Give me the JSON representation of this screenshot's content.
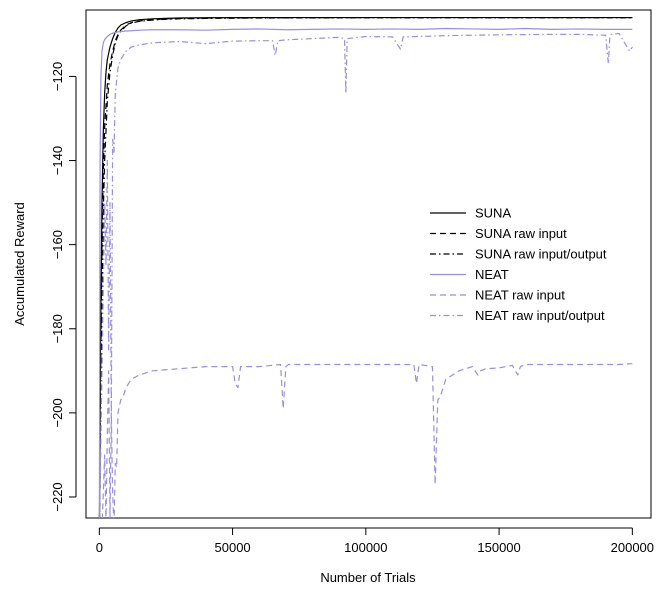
{
  "chart_data": {
    "type": "line",
    "title": "",
    "xlabel": "Number of Trials",
    "ylabel": "Accumulated Reward",
    "xlim": [
      -5000,
      207000
    ],
    "ylim": [
      -225,
      -104.2
    ],
    "x_ticks": [
      0,
      50000,
      100000,
      150000,
      200000
    ],
    "x_tick_labels": [
      "0",
      "50000",
      "100000",
      "150000",
      "200000"
    ],
    "y_ticks": [
      -220,
      -200,
      -180,
      -160,
      -140,
      -120
    ],
    "y_tick_labels": [
      "−220",
      "−200",
      "−180",
      "−160",
      "−140",
      "−120"
    ],
    "grid": false,
    "legend_position": "right",
    "colors": {
      "suna": "#000000",
      "neat": "#9a8fd8"
    },
    "series": [
      {
        "name": "SUNA",
        "color": "#000000",
        "dash": "solid",
        "x": [
          0,
          500,
          1000,
          1500,
          2000,
          2500,
          3000,
          4000,
          5000,
          6000,
          7000,
          8000,
          10000,
          12000,
          15000,
          20000,
          25000,
          30000,
          40000,
          60000,
          100000,
          150000,
          200000
        ],
        "y": [
          -230,
          -180,
          -150,
          -133,
          -124,
          -119,
          -116,
          -113,
          -111,
          -109.5,
          -108.5,
          -107.8,
          -107.2,
          -106.8,
          -106.5,
          -106.3,
          -106.2,
          -106.1,
          -106.05,
          -106,
          -106,
          -106,
          -106
        ]
      },
      {
        "name": "SUNA raw input",
        "color": "#000000",
        "dash": "dashed",
        "x": [
          0,
          500,
          1000,
          1500,
          2000,
          3000,
          4000,
          5000,
          6000,
          7000,
          8000,
          10000,
          12000,
          15000,
          20000,
          25000,
          30000,
          40000,
          60000,
          100000,
          150000,
          200000
        ],
        "y": [
          -230,
          -190,
          -160,
          -142,
          -132,
          -122,
          -117,
          -114,
          -111.5,
          -110,
          -109,
          -107.8,
          -107.2,
          -106.8,
          -106.5,
          -106.3,
          -106.2,
          -106.1,
          -106.05,
          -106,
          -106,
          -106
        ]
      },
      {
        "name": "SUNA raw input/output",
        "color": "#000000",
        "dash": "dashdot",
        "x": [
          0,
          500,
          1000,
          1500,
          2000,
          3000,
          4000,
          5000,
          6000,
          7000,
          8000,
          10000,
          12000,
          15000,
          20000,
          25000,
          30000,
          40000,
          60000,
          100000,
          150000,
          200000
        ],
        "y": [
          -230,
          -200,
          -172,
          -152,
          -140,
          -126,
          -119,
          -115,
          -112,
          -110.3,
          -109.3,
          -108,
          -107.3,
          -106.9,
          -106.6,
          -106.4,
          -106.3,
          -106.2,
          -106.1,
          -106.05,
          -106.05,
          -106.05
        ]
      },
      {
        "name": "NEAT",
        "color": "#9a8fd8",
        "dash": "solid",
        "x": [
          0,
          300,
          600,
          1000,
          1500,
          2000,
          3000,
          4000,
          5000,
          7000,
          10000,
          15000,
          20000,
          30000,
          40000,
          50000,
          60000,
          70000,
          80000,
          90000,
          100000,
          110000,
          120000,
          130000,
          140000,
          150000,
          160000,
          170000,
          180000,
          190000,
          200000
        ],
        "y": [
          -230,
          -140,
          -120,
          -114,
          -112,
          -111.2,
          -110.5,
          -110,
          -109.7,
          -109.4,
          -109.2,
          -109,
          -108.9,
          -108.9,
          -109,
          -108.8,
          -108.7,
          -108.9,
          -108.8,
          -108.7,
          -108.8,
          -108.7,
          -108.8,
          -108.6,
          -108.7,
          -108.8,
          -108.6,
          -108.8,
          -108.7,
          -108.8,
          -108.8
        ]
      },
      {
        "name": "NEAT raw input",
        "color": "#9a8fd8",
        "dash": "dashed",
        "x": [
          0,
          1000,
          2000,
          2500,
          3000,
          3500,
          4000,
          4500,
          5000,
          5500,
          6000,
          6500,
          7000,
          8000,
          9000,
          10000,
          12000,
          15000,
          20000,
          30000,
          40000,
          50000,
          51000,
          52000,
          53000,
          60000,
          68000,
          69000,
          70000,
          71000,
          80000,
          90000,
          100000,
          110000,
          118000,
          119000,
          120000,
          125000,
          126000,
          127000,
          128000,
          130000,
          135000,
          140000,
          142000,
          143000,
          145000,
          150000,
          155000,
          157000,
          158000,
          160000,
          170000,
          180000,
          190000,
          195000,
          200000
        ],
        "y": [
          -230,
          -228,
          -210,
          -226,
          -205,
          -190,
          -225,
          -200,
          -219,
          -227,
          -212,
          -213,
          -200,
          -197,
          -196,
          -194,
          -192,
          -191,
          -190,
          -189.5,
          -189,
          -189,
          -193,
          -194,
          -189,
          -189,
          -188.5,
          -199,
          -189,
          -188.5,
          -188.5,
          -188.5,
          -188.5,
          -188.5,
          -188.5,
          -193,
          -188.5,
          -189,
          -217,
          -197,
          -196,
          -192,
          -190,
          -189,
          -191,
          -190,
          -189.5,
          -189.3,
          -188.7,
          -191,
          -189,
          -188.5,
          -188.5,
          -188.5,
          -188.5,
          -188.5,
          -188.3
        ]
      },
      {
        "name": "NEAT raw input/output",
        "color": "#9a8fd8",
        "dash": "dashdot",
        "x": [
          0,
          1000,
          2000,
          2500,
          3000,
          3500,
          4000,
          4500,
          5000,
          5500,
          6000,
          7000,
          8000,
          10000,
          12000,
          15000,
          20000,
          30000,
          40000,
          50000,
          60000,
          65000,
          66000,
          67000,
          70000,
          80000,
          90000,
          92000,
          92500,
          93000,
          100000,
          110000,
          113000,
          114000,
          120000,
          130000,
          150000,
          170000,
          180000,
          190000,
          191000,
          191500,
          192000,
          195000,
          199000,
          200000
        ],
        "y": [
          -230,
          -190,
          -150,
          -165,
          -140,
          -185,
          -150,
          -200,
          -135,
          -138,
          -124,
          -118,
          -116,
          -114,
          -113,
          -112.5,
          -112,
          -111.7,
          -112.2,
          -111.6,
          -111.5,
          -111.5,
          -115,
          -111.5,
          -111.3,
          -111,
          -110.7,
          -111,
          -124,
          -111,
          -110.5,
          -110.6,
          -113.5,
          -110.6,
          -110.5,
          -110.3,
          -110.1,
          -110,
          -110,
          -110.2,
          -117,
          -111,
          -110,
          -109.8,
          -114,
          -113
        ]
      }
    ]
  }
}
